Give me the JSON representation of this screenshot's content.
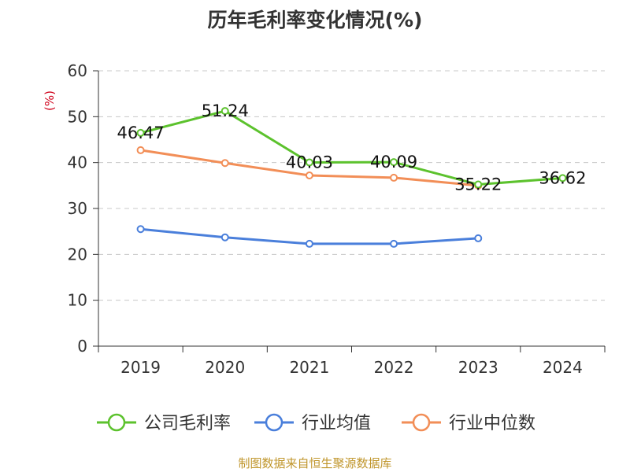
{
  "chart_data": {
    "type": "line",
    "title": "历年毛利率变化情况(%)",
    "ylabel": "(%)",
    "source": "制图数据来自恒生聚源数据库",
    "categories": [
      "2019",
      "2020",
      "2021",
      "2022",
      "2023",
      "2024"
    ],
    "ylim": [
      0,
      60
    ],
    "yticks": [
      0,
      10,
      20,
      30,
      40,
      50,
      60
    ],
    "grid": true,
    "legend_position": "bottom",
    "series": [
      {
        "name": "公司毛利率",
        "color": "#5cc22d",
        "values": [
          46.47,
          51.24,
          40.03,
          40.09,
          35.22,
          36.62
        ],
        "labels": [
          "46.47",
          "51.24",
          "40.03",
          "40.09",
          "35.22",
          "36.62"
        ]
      },
      {
        "name": "行业均值",
        "color": "#4a7fdb",
        "values": [
          25.5,
          23.7,
          22.3,
          22.3,
          23.5,
          null
        ]
      },
      {
        "name": "行业中位数",
        "color": "#f28e57",
        "values": [
          42.7,
          39.9,
          37.2,
          36.7,
          35.0,
          null
        ]
      }
    ]
  }
}
